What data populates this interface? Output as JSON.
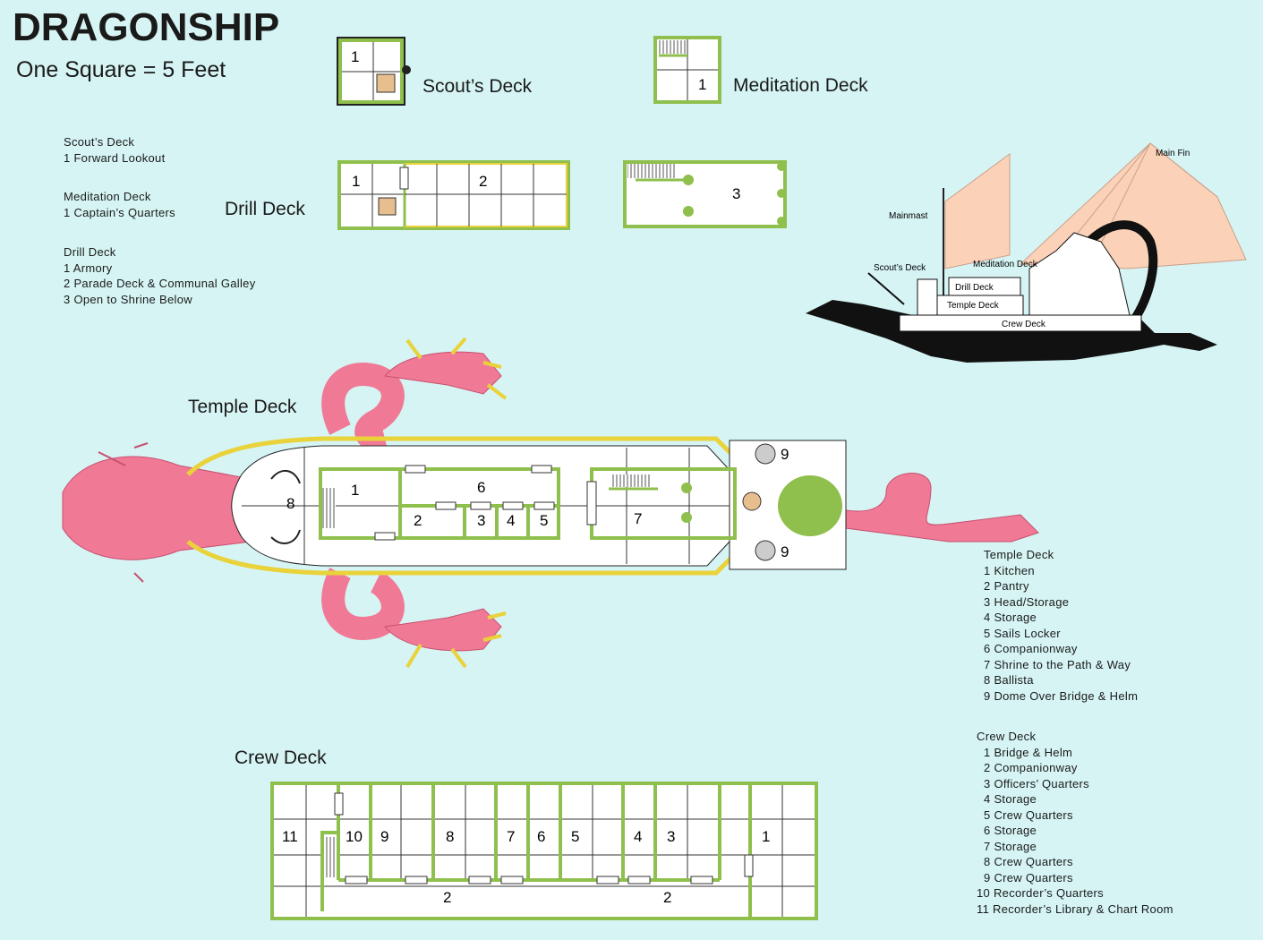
{
  "title": "DRAGONSHIP",
  "scale": "One Square = 5 Feet",
  "deck_labels": {
    "scout": "Scout’s Deck",
    "meditation": "Meditation Deck",
    "drill": "Drill Deck",
    "temple": "Temple Deck",
    "crew": "Crew Deck"
  },
  "legend_left": [
    {
      "heading": "Scout’s Deck",
      "items": [
        "1  Forward Lookout"
      ]
    },
    {
      "heading": "Meditation Deck",
      "items": [
        "1  Captain’s Quarters"
      ]
    },
    {
      "heading": "Drill Deck",
      "items": [
        "1  Armory",
        "2  Parade Deck & Communal Galley",
        "3  Open to Shrine Below"
      ]
    }
  ],
  "legend_temple": {
    "heading": "Temple Deck",
    "items": [
      "1  Kitchen",
      "2  Pantry",
      "3  Head/Storage",
      "4  Storage",
      "5  Sails Locker",
      "6  Companionway",
      "7  Shrine to the Path & Way",
      "8  Ballista",
      "9  Dome Over Bridge & Helm"
    ]
  },
  "legend_crew": {
    "heading": "Crew Deck",
    "items": [
      "1  Bridge & Helm",
      "2  Companionway",
      "3  Officers’ Quarters",
      "4  Storage",
      "5  Crew Quarters",
      "6  Storage",
      "7  Storage",
      "8  Crew Quarters",
      "9  Crew Quarters",
      "10  Recorder’s Quarters",
      "11  Recorder’s Library & Chart Room"
    ]
  },
  "side_view_labels": {
    "main_fin": "Main Fin",
    "mainmast": "Mainmast",
    "scouts_deck": "Scout’s Deck",
    "meditation_deck": "Meditation Deck",
    "drill_deck": "Drill Deck",
    "temple_deck": "Temple Deck",
    "crew_deck": "Crew Deck"
  },
  "room_numbers": {
    "scout": [
      "1"
    ],
    "meditation": [
      "1"
    ],
    "drill": [
      "1",
      "2",
      "3"
    ],
    "temple": [
      "1",
      "2",
      "3",
      "4",
      "5",
      "6",
      "7",
      "8",
      "9",
      "9"
    ],
    "crew": [
      "11",
      "10",
      "9",
      "8",
      "7",
      "6",
      "5",
      "4",
      "3",
      "1",
      "2",
      "2"
    ]
  },
  "colors": {
    "background": "#d6f4f4",
    "wall": "#8fbf4c",
    "dragon": "#f07a95",
    "sail": "#fbd2b8",
    "rail": "#e9d23a"
  }
}
